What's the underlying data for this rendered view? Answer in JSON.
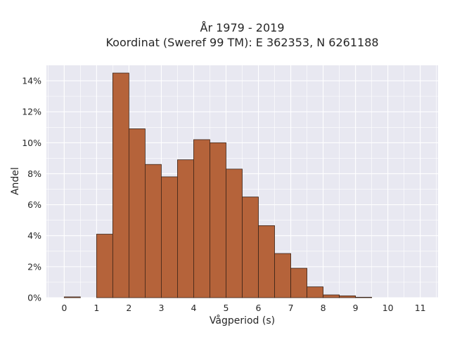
{
  "chart_data": {
    "type": "bar",
    "title_lines": [
      "År 1979 - 2019",
      "Koordinat (Sweref 99 TM): E 362353, N 6261188"
    ],
    "xlabel": "Vågperiod (s)",
    "ylabel": "Andel",
    "xlim": [
      -0.55,
      11.55
    ],
    "ylim": [
      0,
      15
    ],
    "x_ticks": [
      0,
      1,
      2,
      3,
      4,
      5,
      6,
      7,
      8,
      9,
      10,
      11
    ],
    "x_tick_labels": [
      "0",
      "1",
      "2",
      "3",
      "4",
      "5",
      "6",
      "7",
      "8",
      "9",
      "10",
      "11"
    ],
    "y_ticks": [
      0,
      2,
      4,
      6,
      8,
      10,
      12,
      14
    ],
    "y_tick_labels": [
      "0%",
      "2%",
      "4%",
      "6%",
      "8%",
      "10%",
      "12%",
      "14%"
    ],
    "bin_width": 0.5,
    "bin_starts": [
      0,
      1,
      1.5,
      2,
      2.5,
      3,
      3.5,
      4,
      4.5,
      5,
      5.5,
      6,
      6.5,
      7,
      7.5,
      8,
      8.5,
      9
    ],
    "values": [
      0.05,
      4.1,
      14.5,
      10.9,
      8.6,
      7.8,
      8.9,
      10.2,
      10.0,
      8.3,
      6.5,
      4.65,
      2.85,
      1.9,
      0.7,
      0.18,
      0.12,
      0.03
    ],
    "unit": "%",
    "grid": true,
    "bar_color": "#b5633a",
    "bar_edge_color": "#3b2418",
    "background_color": "#e8e8f1"
  }
}
